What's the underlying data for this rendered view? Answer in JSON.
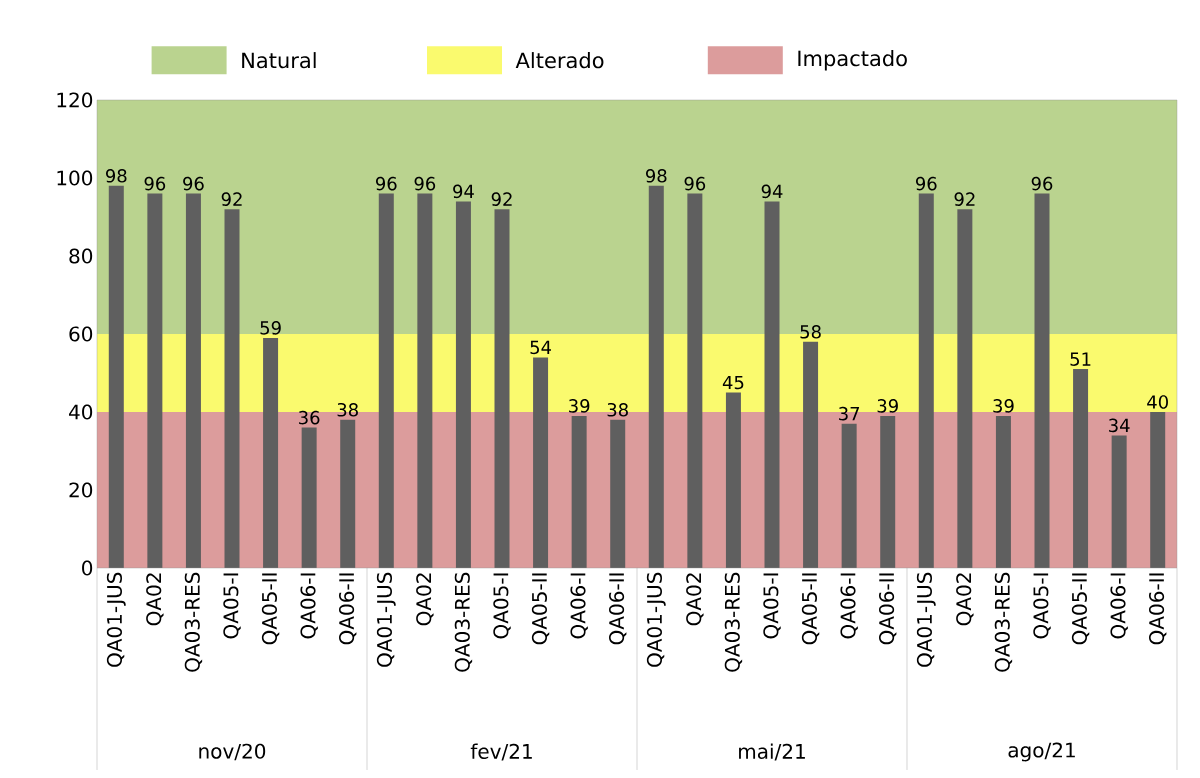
{
  "chart_data": {
    "type": "bar",
    "categories": [
      "QA01-JUS",
      "QA02",
      "QA03-RES",
      "QA05-I",
      "QA05-II",
      "QA06-I",
      "QA06-II",
      "QA01-JUS",
      "QA02",
      "QA03-RES",
      "QA05-I",
      "QA05-II",
      "QA06-I",
      "QA06-II",
      "QA01-JUS",
      "QA02",
      "QA03-RES",
      "QA05-I",
      "QA05-II",
      "QA06-I",
      "QA06-II",
      "QA01-JUS",
      "QA02",
      "QA03-RES",
      "QA05-I",
      "QA05-II",
      "QA06-I",
      "QA06-II"
    ],
    "values": [
      98,
      96,
      96,
      92,
      59,
      36,
      38,
      96,
      96,
      94,
      92,
      54,
      39,
      38,
      98,
      96,
      45,
      94,
      58,
      37,
      39,
      96,
      92,
      39,
      96,
      51,
      34,
      40
    ],
    "color": "#5f5f5f",
    "data_labels": true,
    "ylim": [
      0,
      120
    ],
    "yticks": [
      0,
      20,
      40,
      60,
      80,
      100,
      120
    ],
    "bands": [
      {
        "axis": "y",
        "from": 60,
        "to": 120,
        "label": "Natural",
        "color": "#bad38f"
      },
      {
        "axis": "y",
        "from": 40,
        "to": 60,
        "label": "Alterado",
        "color": "#fafa6e"
      },
      {
        "axis": "y",
        "from": 0,
        "to": 40,
        "label": "Impactado",
        "color": "#dc9c9c"
      }
    ],
    "annotations": [
      "nov/20",
      "fev/21",
      "mai/21",
      "ago/21"
    ],
    "legend": "top"
  }
}
